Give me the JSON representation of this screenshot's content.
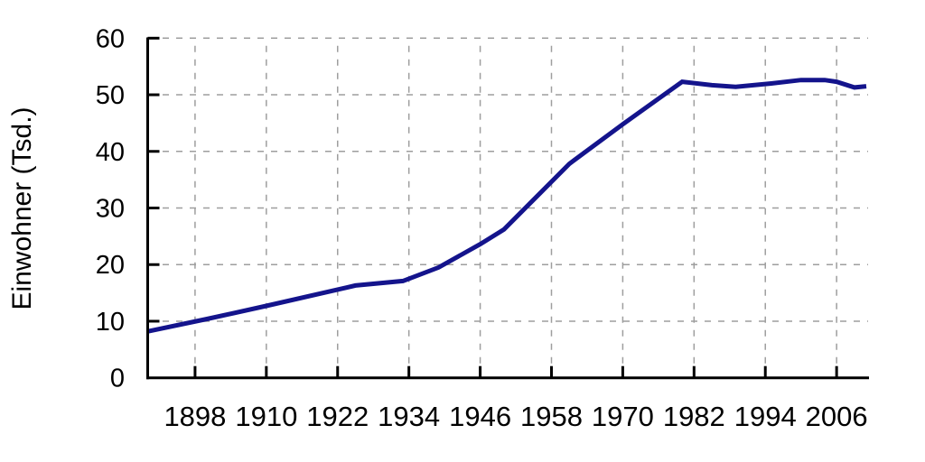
{
  "chart_data": {
    "type": "line",
    "title": "",
    "xlabel": "",
    "ylabel": "Einwohner (Tsd.)",
    "x_tick_labels": [
      1898,
      1910,
      1922,
      1934,
      1946,
      1958,
      1970,
      1982,
      1994,
      2006
    ],
    "y_tick_labels": [
      0,
      10,
      20,
      30,
      40,
      50,
      60
    ],
    "xlim": [
      1889.8,
      2011.3
    ],
    "ylim": [
      0,
      60
    ],
    "grid": "dashed",
    "legend": "none",
    "series": [
      {
        "name": "Einwohner (Tsd.)",
        "points": [
          [
            1890,
            8.2
          ],
          [
            1900,
            10.4
          ],
          [
            1910,
            12.7
          ],
          [
            1925,
            16.3
          ],
          [
            1933,
            17.1
          ],
          [
            1939,
            19.5
          ],
          [
            1946,
            23.6
          ],
          [
            1950,
            26.2
          ],
          [
            1961,
            37.8
          ],
          [
            1970,
            44.8
          ],
          [
            1980,
            52.3
          ],
          [
            1985,
            51.7
          ],
          [
            1989,
            51.4
          ],
          [
            1995,
            52.0
          ],
          [
            2000,
            52.6
          ],
          [
            2004,
            52.6
          ],
          [
            2006,
            52.3
          ],
          [
            2009,
            51.3
          ],
          [
            2011,
            51.5
          ]
        ]
      }
    ],
    "colors": {
      "line": "#14148c",
      "grid": "#9e9e9e",
      "axis": "#000000",
      "text": "#000000",
      "background": "#ffffff"
    }
  }
}
